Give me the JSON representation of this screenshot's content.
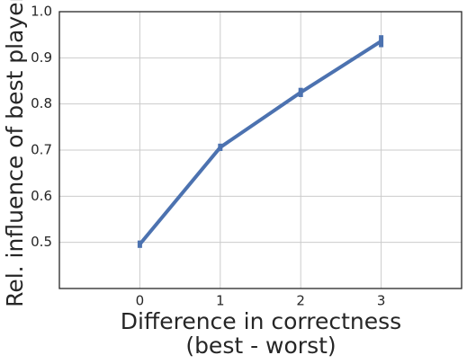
{
  "chart_data": {
    "type": "line",
    "xlabel": [
      "Difference in correctness",
      "(best - worst)"
    ],
    "ylabel": "Rel. influence of best player",
    "x": [
      0,
      1,
      2,
      3
    ],
    "series": [
      {
        "color": "#4c72b0",
        "values": [
          0.496,
          0.706,
          0.825,
          0.936
        ],
        "errors": [
          0.008,
          0.008,
          0.01,
          0.013
        ]
      }
    ],
    "xlim": [
      -1,
      4
    ],
    "xticks": [
      0,
      1,
      2,
      3
    ],
    "ylim": [
      0.4,
      1.0
    ],
    "yticks": [
      0.5,
      0.6,
      0.7,
      0.8,
      0.9,
      {
        "value": 1,
        "label": "1.0"
      }
    ],
    "grid": true
  }
}
